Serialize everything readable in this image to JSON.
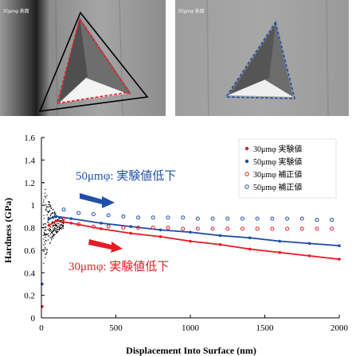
{
  "photos": [
    {
      "label": "30μmφ 表面"
    },
    {
      "label": "50μmφ 表面"
    }
  ],
  "chart_data": {
    "type": "scatter",
    "xlabel": "Displacement Into Surface (nm)",
    "ylabel": "Hardness (GPa)",
    "xlim": [
      0,
      2000
    ],
    "ylim": [
      0,
      1.6
    ],
    "xticks": [
      "0",
      "500",
      "1000",
      "1500",
      "2000"
    ],
    "yticks": [
      "0",
      "0.2",
      "0.4",
      "0.6",
      "0.8",
      "1",
      "1.2",
      "1.4",
      "1.6"
    ],
    "legend_position": "top-right",
    "series": [
      {
        "name": "30μmφ 実験値",
        "color": "#e31e24",
        "marker": "filled",
        "x": [
          50,
          100,
          200,
          400,
          600,
          800,
          1000,
          1200,
          1400,
          1600,
          1800,
          2000
        ],
        "y": [
          0.82,
          0.86,
          0.84,
          0.79,
          0.75,
          0.72,
          0.68,
          0.65,
          0.61,
          0.58,
          0.55,
          0.52
        ]
      },
      {
        "name": "50μmφ 実験値",
        "color": "#1f4fa8",
        "marker": "filled",
        "x": [
          50,
          100,
          200,
          400,
          600,
          800,
          1000,
          1200,
          1400,
          1600,
          1800,
          2000
        ],
        "y": [
          0.88,
          0.9,
          0.88,
          0.84,
          0.81,
          0.78,
          0.76,
          0.73,
          0.71,
          0.68,
          0.66,
          0.64
        ]
      },
      {
        "name": "30μmφ 補正値",
        "color": "#e31e24",
        "marker": "open",
        "x": [
          150,
          250,
          350,
          450,
          550,
          650,
          750,
          850,
          950,
          1050,
          1150,
          1250,
          1350,
          1450,
          1550,
          1650,
          1750,
          1850,
          1950
        ],
        "y": [
          0.88,
          0.83,
          0.81,
          0.81,
          0.8,
          0.8,
          0.8,
          0.8,
          0.79,
          0.79,
          0.79,
          0.79,
          0.79,
          0.79,
          0.79,
          0.79,
          0.79,
          0.79,
          0.79
        ]
      },
      {
        "name": "50μmφ 補正値",
        "color": "#1f4fa8",
        "marker": "open",
        "x": [
          150,
          250,
          350,
          450,
          550,
          650,
          750,
          850,
          950,
          1050,
          1150,
          1250,
          1350,
          1450,
          1550,
          1650,
          1750,
          1850,
          1950
        ],
        "y": [
          0.96,
          0.93,
          0.92,
          0.91,
          0.9,
          0.89,
          0.89,
          0.89,
          0.89,
          0.88,
          0.88,
          0.88,
          0.88,
          0.88,
          0.88,
          0.88,
          0.88,
          0.87,
          0.87
        ]
      }
    ],
    "annotations": [
      {
        "text": "50μmφ: 実験値低下",
        "color": "#1f4fa8"
      },
      {
        "text": "30μmφ: 実験値低下",
        "color": "#e31e24"
      }
    ]
  }
}
